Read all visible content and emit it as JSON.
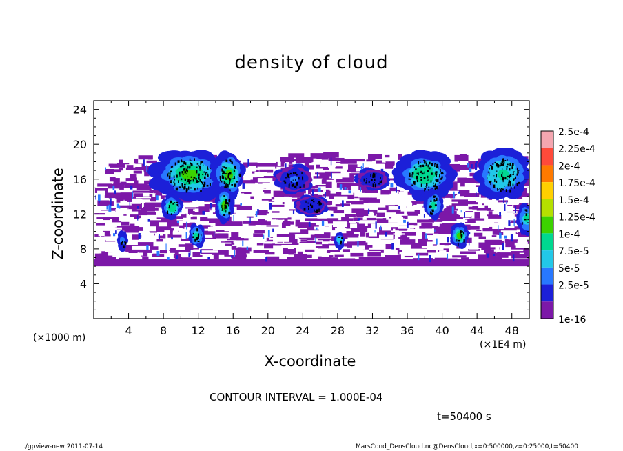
{
  "chart_data": {
    "type": "heatmap",
    "title": "density of cloud",
    "xlabel": "X-coordinate",
    "ylabel": "Z-coordinate",
    "x_unit_left": "(×1000 m)",
    "x_unit_right": "(×1E4 m)",
    "xlim": [
      0,
      50
    ],
    "ylim": [
      0,
      25
    ],
    "xticks": [
      4,
      8,
      12,
      16,
      20,
      24,
      28,
      32,
      36,
      40,
      44,
      48
    ],
    "yticks": [
      4,
      8,
      12,
      16,
      20,
      24
    ],
    "grid": false,
    "legend_position": "right",
    "colorbar": {
      "labels": [
        "2.5e-4",
        "2.25e-4",
        "2e-4",
        "1.75e-4",
        "1.5e-4",
        "1.25e-4",
        "1e-4",
        "7.5e-5",
        "5e-5",
        "2.5e-5",
        "1e-16"
      ],
      "colors": [
        "#f4a6b0",
        "#ff4a3a",
        "#ff7a00",
        "#ffd000",
        "#b5e000",
        "#3cd200",
        "#00d890",
        "#22c8e8",
        "#2878ff",
        "#1c20d8",
        "#7c18a8"
      ]
    },
    "background_band": {
      "z_range": [
        6,
        18.5
      ],
      "level": "1e-16"
    },
    "cloud_cells": [
      {
        "x": 11,
        "z": 16.5,
        "rx": 3.6,
        "rz": 2.6,
        "peak": 0.00015
      },
      {
        "x": 15.5,
        "z": 16.5,
        "rx": 1.6,
        "rz": 2.4,
        "peak": 0.00017
      },
      {
        "x": 15,
        "z": 13,
        "rx": 0.8,
        "rz": 1.8,
        "peak": 0.00016
      },
      {
        "x": 9,
        "z": 12.8,
        "rx": 0.9,
        "rz": 1.2,
        "peak": 0.00014
      },
      {
        "x": 11.8,
        "z": 9.5,
        "rx": 0.7,
        "rz": 1.2,
        "peak": 0.00012
      },
      {
        "x": 38,
        "z": 16.5,
        "rx": 2.7,
        "rz": 2.4,
        "peak": 0.00014
      },
      {
        "x": 39,
        "z": 13,
        "rx": 0.8,
        "rz": 1.5,
        "peak": 0.00012
      },
      {
        "x": 42,
        "z": 9.5,
        "rx": 0.8,
        "rz": 1.2,
        "peak": 0.00015
      },
      {
        "x": 47,
        "z": 16.5,
        "rx": 2.6,
        "rz": 2.6,
        "peak": 0.00013
      },
      {
        "x": 49.7,
        "z": 11.5,
        "rx": 0.8,
        "rz": 1.6,
        "peak": 0.00011
      },
      {
        "x": 28.2,
        "z": 9,
        "rx": 0.4,
        "rz": 0.8,
        "peak": 0.0001
      },
      {
        "x": 3.3,
        "z": 9,
        "rx": 0.4,
        "rz": 1.0,
        "peak": 6e-05
      },
      {
        "x": 23,
        "z": 16,
        "rx": 1.8,
        "rz": 1.4,
        "peak": 5e-05
      },
      {
        "x": 25,
        "z": 13,
        "rx": 1.5,
        "rz": 1.0,
        "peak": 4e-05
      },
      {
        "x": 32,
        "z": 16,
        "rx": 1.5,
        "rz": 1.0,
        "peak": 4e-05
      }
    ]
  },
  "annotations": {
    "contour_interval": "CONTOUR INTERVAL = 1.000E-04",
    "time": "t=50400 s",
    "footer_left": "./gpview-new  2011-07-14",
    "footer_right": "MarsCond_DensCloud.nc@DensCloud,x=0:500000,z=0:25000,t=50400"
  }
}
